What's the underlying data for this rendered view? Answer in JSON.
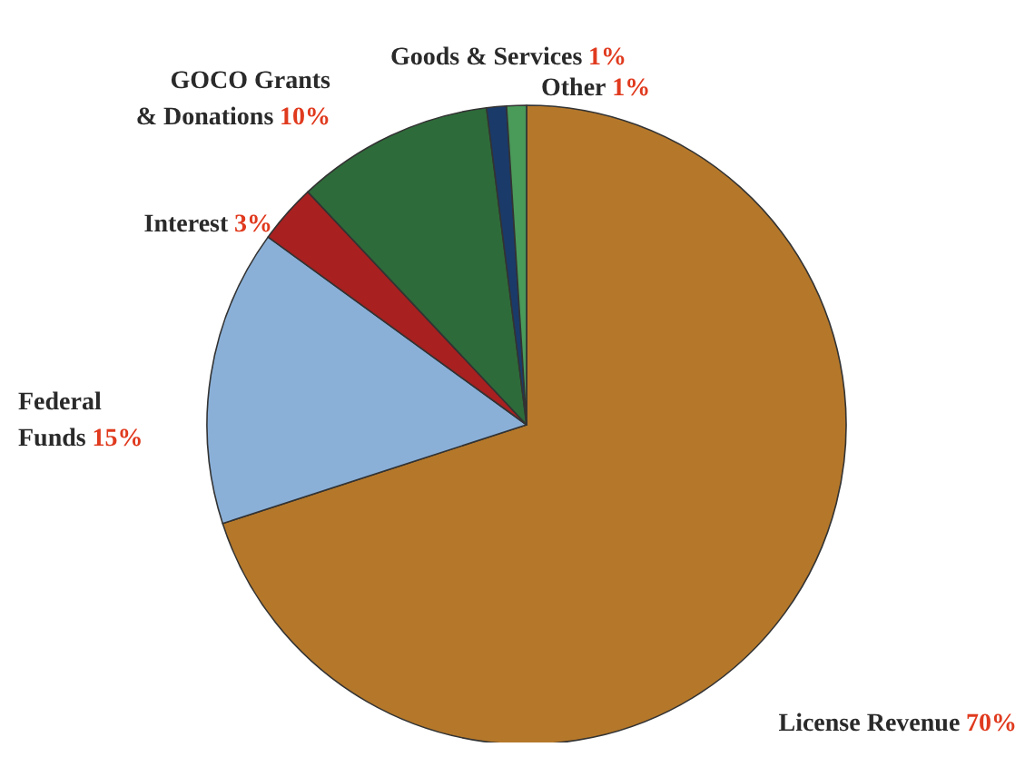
{
  "chart_data": {
    "type": "pie",
    "categories": [
      "License Revenue",
      "Federal\nFunds",
      "Interest",
      "GOCO Grants\n& Donations",
      "Goods & Services",
      "Other"
    ],
    "values": [
      70,
      15,
      3,
      10,
      1,
      1
    ],
    "value_labels": [
      "70%",
      "15%",
      "3%",
      "10%",
      "1%",
      "1%"
    ],
    "colors": [
      "#b5782a",
      "#8ab0d8",
      "#a82020",
      "#2e6b3a",
      "#1a3a6a",
      "#4a9a5a"
    ]
  }
}
